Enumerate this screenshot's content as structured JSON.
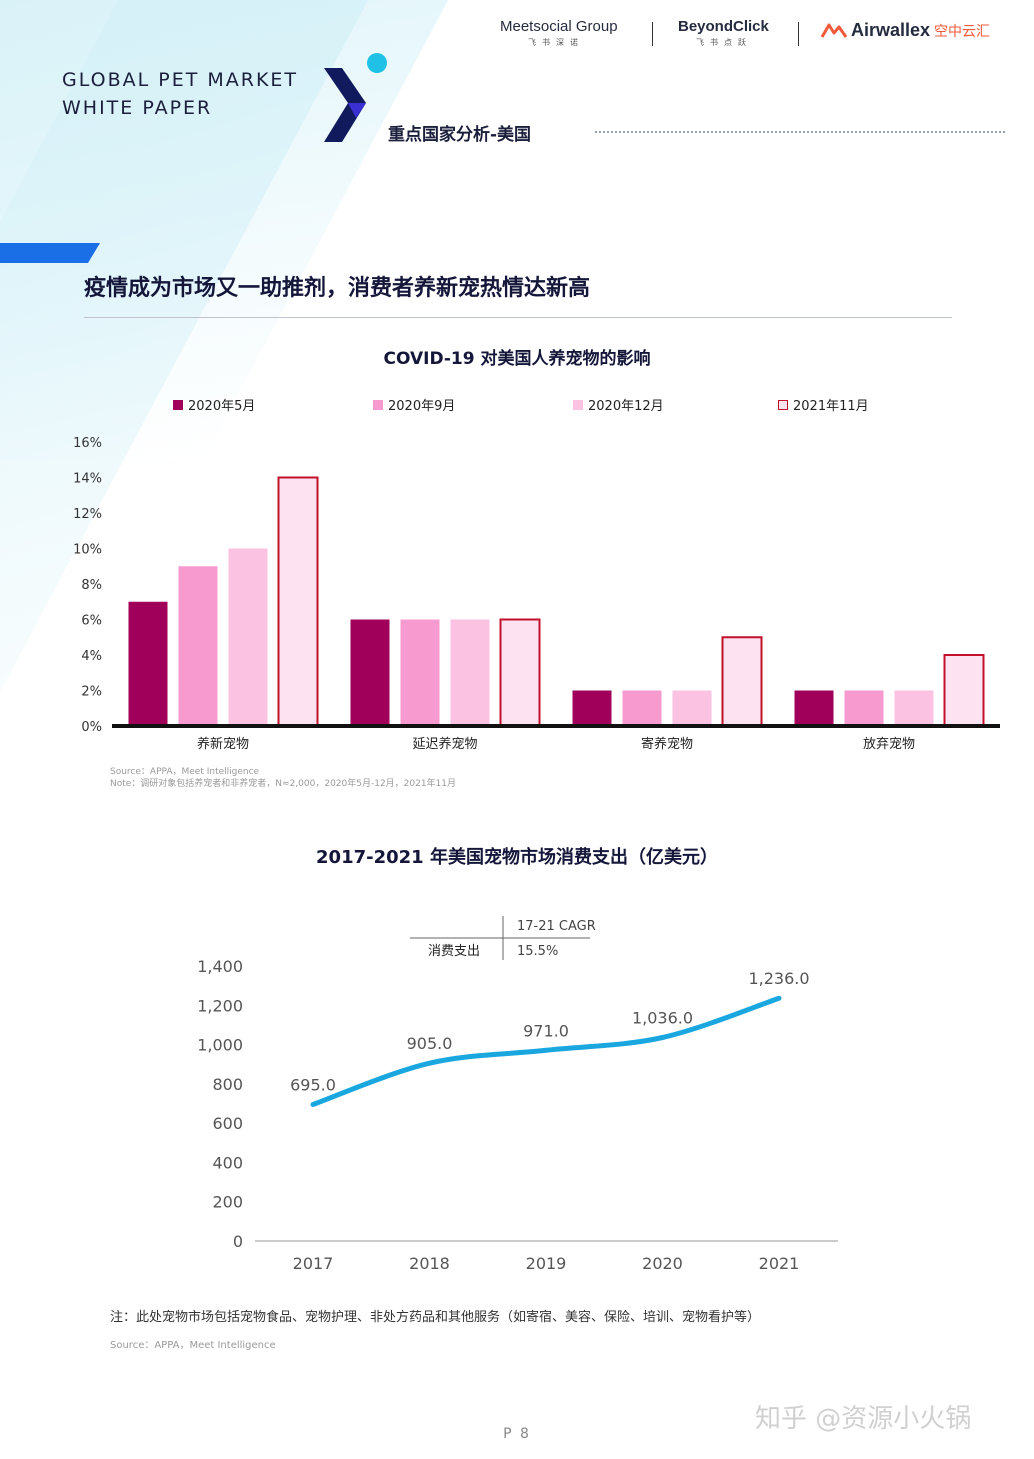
{
  "header": {
    "doc_title_line1": "GLOBAL PET MARKET",
    "doc_title_line2": "WHITE PAPER",
    "section_label": "重点国家分析-美国",
    "logos": [
      {
        "name": "Meetsocial Group",
        "sub": "飞书深诺"
      },
      {
        "name": "BeyondClick",
        "sub": "飞书点跃"
      },
      {
        "name": "Airwallex",
        "sub": "空中云汇"
      }
    ]
  },
  "headline": "疫情成为市场又一助推剂，消费者养新宠热情达新高",
  "chart_data": [
    {
      "type": "bar",
      "title": "COVID-19 对美国人养宠物的影响",
      "categories": [
        "养新宠物",
        "延迟养宠物",
        "寄养宠物",
        "放弃宠物"
      ],
      "series": [
        {
          "name": "2020年5月",
          "values": [
            7,
            6,
            2,
            2
          ],
          "color": "#a0005a"
        },
        {
          "name": "2020年9月",
          "values": [
            9,
            6,
            2,
            2
          ],
          "color": "#f79ad0"
        },
        {
          "name": "2020年12月",
          "values": [
            10,
            6,
            2,
            2
          ],
          "color": "#fbc2e2"
        },
        {
          "name": "2021年11月",
          "values": [
            14,
            6,
            5,
            4
          ],
          "color": "#fde3f1",
          "border": "#c0102a"
        }
      ],
      "yticks": [
        "0%",
        "2%",
        "4%",
        "6%",
        "8%",
        "10%",
        "12%",
        "14%",
        "16%"
      ],
      "ylim": [
        0,
        16
      ],
      "grid": false,
      "legend": "top",
      "source_line1": "Source：APPA，Meet Intelligence",
      "source_line2": "Note：调研对象包括养宠者和非养宠者，N≈2,000，2020年5月-12月，2021年11月"
    },
    {
      "type": "line",
      "title": "2017-2021 年美国宠物市场消费支出（亿美元）",
      "x": [
        "2017",
        "2018",
        "2019",
        "2020",
        "2021"
      ],
      "series": [
        {
          "values": [
            695.0,
            905.0,
            971.0,
            1036.0,
            1236.0
          ],
          "color": "#1aa7e0"
        }
      ],
      "data_labels": [
        "695.0",
        "905.0",
        "971.0",
        "1,036.0",
        "1,236.0"
      ],
      "yticks": [
        "0",
        "200",
        "400",
        "600",
        "800",
        "1,000",
        "1,200",
        "1,400"
      ],
      "ylim": [
        0,
        1400
      ],
      "grid": false,
      "cagr_table": {
        "header": "17-21 CAGR",
        "row_label": "消费支出",
        "value": "15.5%"
      }
    }
  ],
  "footnote": "注：此处宠物市场包括宠物食品、宠物护理、非处方药品和其他服务（如寄宿、美容、保险、培训、宠物看护等）",
  "footnote_source": "Source：APPA，Meet Intelligence",
  "page_number": "P 8",
  "watermark": "知乎 @资源小火锅"
}
